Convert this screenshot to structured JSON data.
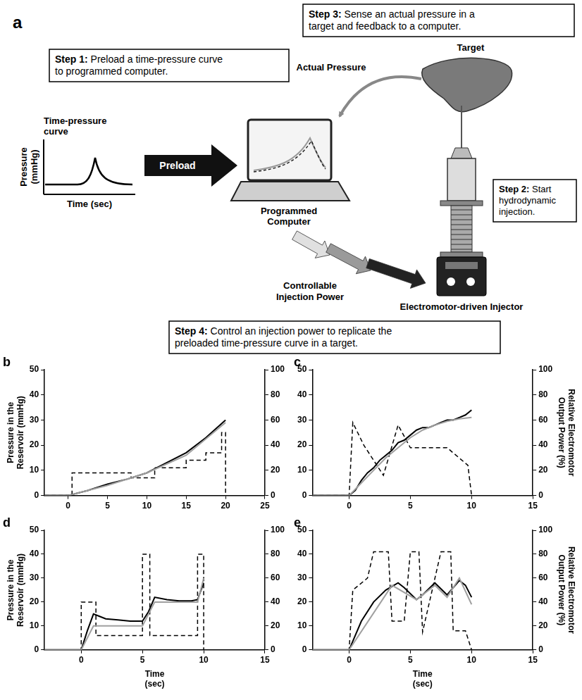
{
  "diagram": {
    "panel": "a",
    "steps": [
      {
        "label": "Step 1:",
        "text": "Preload a time-pressure curve to programmed computer."
      },
      {
        "label": "Step 2:",
        "text": "Start hydrodynamic injection."
      },
      {
        "label": "Step 3:",
        "text": "Sense an actual pressure in a target and feedback to a computer."
      },
      {
        "label": "Step 4:",
        "text": "Control an injection power to replicate the preloaded time-pressure curve in a target."
      }
    ],
    "curve": {
      "title": "Time-pressure curve",
      "ylabel": "Pressure (mmHg)",
      "xlabel": "Time (sec)"
    },
    "labels": {
      "preload": "Preload",
      "computer": "Programmed Computer",
      "feedback": "Actual Pressure",
      "target": "Target",
      "power": "Controllable Injection Power",
      "injector": "Electromotor-driven Injector"
    }
  },
  "chart_data": [
    {
      "panel": "b",
      "type": "line",
      "grid": false,
      "ylabel": "Pressure in the Reservoir (mmHg)",
      "xlim": [
        -3,
        25
      ],
      "xticks": [
        0,
        5,
        10,
        15,
        20,
        25
      ],
      "ylim": [
        0,
        50
      ],
      "yticks": [
        0,
        10,
        20,
        30,
        40,
        50
      ],
      "y2lim": [
        0,
        100
      ],
      "y2ticks": [
        0,
        20,
        40,
        60,
        80,
        100
      ],
      "series": [
        {
          "color": "#a0a0a0",
          "line_style": "solid",
          "axis": "y",
          "x": [
            -3,
            0,
            5,
            10,
            15,
            20
          ],
          "values": [
            0,
            0,
            4,
            9,
            16,
            29
          ]
        },
        {
          "color": "#000000",
          "line_style": "solid",
          "axis": "y",
          "x": [
            -3,
            0,
            2.5,
            5,
            7.5,
            10,
            12.5,
            15,
            17.5,
            20
          ],
          "values": [
            0,
            0,
            2,
            4.5,
            6.5,
            9,
            13,
            17,
            23,
            30
          ]
        },
        {
          "color": "#000000",
          "line_style": "dashed",
          "axis": "y2",
          "x": [
            -3,
            0,
            0.5,
            0.5,
            8,
            8,
            11,
            11,
            15,
            15,
            17.5,
            17.5,
            19.5,
            19.5,
            20,
            20
          ],
          "values": [
            0,
            0,
            0,
            18,
            18,
            14,
            14,
            22,
            22,
            28,
            28,
            34,
            34,
            50,
            50,
            0
          ]
        }
      ]
    },
    {
      "panel": "c",
      "type": "line",
      "grid": false,
      "y2label": "Relative Electromotor Output Power (%)",
      "xlim": [
        -3,
        15
      ],
      "xticks": [
        0,
        5,
        10,
        15
      ],
      "ylim": [
        0,
        50
      ],
      "yticks": [
        0,
        10,
        20,
        30,
        40,
        50
      ],
      "y2lim": [
        0,
        100
      ],
      "y2ticks": [
        0,
        20,
        40,
        60,
        80,
        100
      ],
      "series": [
        {
          "color": "#a0a0a0",
          "line_style": "solid",
          "axis": "y",
          "x": [
            -3,
            0,
            1,
            2,
            3,
            4,
            5,
            6,
            7,
            8,
            9,
            10
          ],
          "values": [
            0,
            0,
            5,
            10,
            15,
            19,
            23,
            26,
            28,
            29.5,
            30.5,
            31
          ]
        },
        {
          "color": "#000000",
          "line_style": "solid",
          "axis": "y",
          "x": [
            -3,
            0,
            0.5,
            1,
            1.5,
            2,
            2.5,
            3,
            3.5,
            4,
            4.5,
            5,
            5.5,
            6,
            6.5,
            7,
            7.5,
            8,
            8.5,
            9,
            9.5,
            10
          ],
          "values": [
            0,
            0,
            2,
            6,
            9,
            11,
            14,
            16,
            18,
            21,
            22,
            24,
            26,
            27,
            27,
            28,
            29,
            30,
            30,
            31,
            32,
            34
          ]
        },
        {
          "color": "#000000",
          "line_style": "dashed",
          "axis": "y2",
          "x": [
            -3,
            0,
            0.3,
            1.2,
            2.8,
            4,
            5,
            8,
            9.7,
            10
          ],
          "values": [
            0,
            0,
            58,
            40,
            16,
            56,
            38,
            38,
            24,
            0
          ]
        }
      ]
    },
    {
      "panel": "d",
      "type": "line",
      "grid": false,
      "ylabel": "Pressure in the Reservoir (mmHg)",
      "xlabel": "Time (sec)",
      "xlim": [
        -3,
        15
      ],
      "xticks": [
        0,
        5,
        10,
        15
      ],
      "ylim": [
        0,
        50
      ],
      "yticks": [
        0,
        10,
        20,
        30,
        40,
        50
      ],
      "y2lim": [
        0,
        100
      ],
      "y2ticks": [
        0,
        20,
        40,
        60,
        80,
        100
      ],
      "series": [
        {
          "color": "#a0a0a0",
          "line_style": "solid",
          "axis": "y",
          "x": [
            -3,
            0,
            1,
            5,
            6,
            9.5,
            10
          ],
          "values": [
            0,
            0,
            10,
            10,
            20,
            20,
            30
          ]
        },
        {
          "color": "#000000",
          "line_style": "solid",
          "axis": "y",
          "x": [
            -3,
            0,
            0.5,
            1,
            1.5,
            2,
            3,
            4,
            5,
            5.5,
            6,
            7,
            8,
            9,
            9.5,
            10
          ],
          "values": [
            0,
            0,
            8,
            15,
            14,
            13,
            12.5,
            12,
            12,
            16,
            22,
            21,
            20.5,
            20.5,
            21,
            28
          ]
        },
        {
          "color": "#000000",
          "line_style": "dashed",
          "axis": "y2",
          "x": [
            -3,
            0,
            0,
            1.2,
            1.2,
            5,
            5,
            5.6,
            5.6,
            9.5,
            9.5,
            10,
            10
          ],
          "values": [
            0,
            0,
            40,
            40,
            12,
            12,
            80,
            80,
            12,
            12,
            80,
            80,
            0
          ]
        }
      ]
    },
    {
      "panel": "e",
      "type": "line",
      "grid": false,
      "y2label": "Relative Electromotor Output Power (%)",
      "xlabel": "Time (sec)",
      "xlim": [
        -3,
        15
      ],
      "xticks": [
        0,
        5,
        10,
        15
      ],
      "ylim": [
        0,
        50
      ],
      "yticks": [
        0,
        10,
        20,
        30,
        40,
        50
      ],
      "y2lim": [
        0,
        100
      ],
      "y2ticks": [
        0,
        20,
        40,
        60,
        80,
        100
      ],
      "series": [
        {
          "color": "#a0a0a0",
          "line_style": "solid",
          "axis": "y",
          "x": [
            -3,
            0,
            3.5,
            5.5,
            7,
            8,
            9,
            10
          ],
          "values": [
            0,
            0,
            27,
            21,
            27,
            22,
            30,
            19
          ]
        },
        {
          "color": "#000000",
          "line_style": "solid",
          "axis": "y",
          "x": [
            -3,
            0,
            1,
            2,
            3,
            4,
            4.5,
            5.5,
            6,
            7,
            8,
            9,
            9.5,
            10
          ],
          "values": [
            0,
            0,
            12,
            20,
            25,
            28,
            26,
            21,
            23,
            28,
            23,
            29,
            27,
            22
          ]
        },
        {
          "color": "#000000",
          "line_style": "dashed",
          "axis": "y2",
          "x": [
            -3,
            0,
            0.3,
            1.5,
            2,
            3.2,
            3.5,
            4.5,
            5,
            5.7,
            6,
            7.5,
            8.3,
            8.5,
            9.5,
            10
          ],
          "values": [
            0,
            0,
            50,
            60,
            82,
            82,
            24,
            24,
            82,
            82,
            15,
            82,
            82,
            16,
            16,
            0
          ]
        }
      ]
    }
  ]
}
